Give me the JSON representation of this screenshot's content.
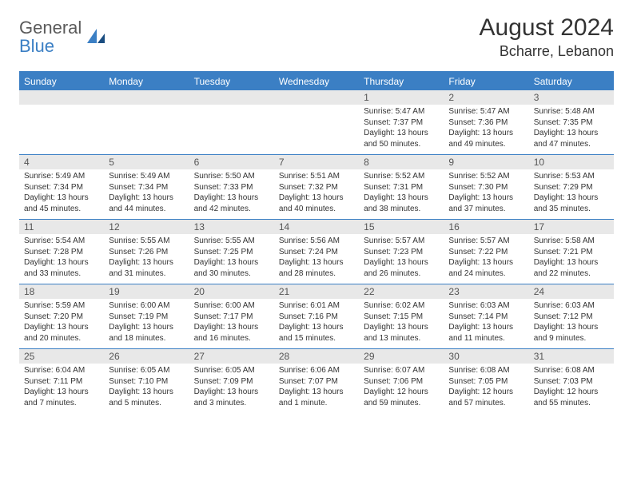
{
  "logo": {
    "text1": "General",
    "text2": "Blue"
  },
  "title": "August 2024",
  "location": "Bcharre, Lebanon",
  "colors": {
    "accent": "#3b7fc4",
    "header_text": "#ffffff",
    "daynum_bg": "#e8e8e8",
    "body_text": "#333333"
  },
  "day_headers": [
    "Sunday",
    "Monday",
    "Tuesday",
    "Wednesday",
    "Thursday",
    "Friday",
    "Saturday"
  ],
  "weeks": [
    {
      "nums": [
        "",
        "",
        "",
        "",
        "1",
        "2",
        "3"
      ],
      "cells": [
        [],
        [],
        [],
        [],
        [
          "Sunrise: 5:47 AM",
          "Sunset: 7:37 PM",
          "Daylight: 13 hours",
          "and 50 minutes."
        ],
        [
          "Sunrise: 5:47 AM",
          "Sunset: 7:36 PM",
          "Daylight: 13 hours",
          "and 49 minutes."
        ],
        [
          "Sunrise: 5:48 AM",
          "Sunset: 7:35 PM",
          "Daylight: 13 hours",
          "and 47 minutes."
        ]
      ]
    },
    {
      "nums": [
        "4",
        "5",
        "6",
        "7",
        "8",
        "9",
        "10"
      ],
      "cells": [
        [
          "Sunrise: 5:49 AM",
          "Sunset: 7:34 PM",
          "Daylight: 13 hours",
          "and 45 minutes."
        ],
        [
          "Sunrise: 5:49 AM",
          "Sunset: 7:34 PM",
          "Daylight: 13 hours",
          "and 44 minutes."
        ],
        [
          "Sunrise: 5:50 AM",
          "Sunset: 7:33 PM",
          "Daylight: 13 hours",
          "and 42 minutes."
        ],
        [
          "Sunrise: 5:51 AM",
          "Sunset: 7:32 PM",
          "Daylight: 13 hours",
          "and 40 minutes."
        ],
        [
          "Sunrise: 5:52 AM",
          "Sunset: 7:31 PM",
          "Daylight: 13 hours",
          "and 38 minutes."
        ],
        [
          "Sunrise: 5:52 AM",
          "Sunset: 7:30 PM",
          "Daylight: 13 hours",
          "and 37 minutes."
        ],
        [
          "Sunrise: 5:53 AM",
          "Sunset: 7:29 PM",
          "Daylight: 13 hours",
          "and 35 minutes."
        ]
      ]
    },
    {
      "nums": [
        "11",
        "12",
        "13",
        "14",
        "15",
        "16",
        "17"
      ],
      "cells": [
        [
          "Sunrise: 5:54 AM",
          "Sunset: 7:28 PM",
          "Daylight: 13 hours",
          "and 33 minutes."
        ],
        [
          "Sunrise: 5:55 AM",
          "Sunset: 7:26 PM",
          "Daylight: 13 hours",
          "and 31 minutes."
        ],
        [
          "Sunrise: 5:55 AM",
          "Sunset: 7:25 PM",
          "Daylight: 13 hours",
          "and 30 minutes."
        ],
        [
          "Sunrise: 5:56 AM",
          "Sunset: 7:24 PM",
          "Daylight: 13 hours",
          "and 28 minutes."
        ],
        [
          "Sunrise: 5:57 AM",
          "Sunset: 7:23 PM",
          "Daylight: 13 hours",
          "and 26 minutes."
        ],
        [
          "Sunrise: 5:57 AM",
          "Sunset: 7:22 PM",
          "Daylight: 13 hours",
          "and 24 minutes."
        ],
        [
          "Sunrise: 5:58 AM",
          "Sunset: 7:21 PM",
          "Daylight: 13 hours",
          "and 22 minutes."
        ]
      ]
    },
    {
      "nums": [
        "18",
        "19",
        "20",
        "21",
        "22",
        "23",
        "24"
      ],
      "cells": [
        [
          "Sunrise: 5:59 AM",
          "Sunset: 7:20 PM",
          "Daylight: 13 hours",
          "and 20 minutes."
        ],
        [
          "Sunrise: 6:00 AM",
          "Sunset: 7:19 PM",
          "Daylight: 13 hours",
          "and 18 minutes."
        ],
        [
          "Sunrise: 6:00 AM",
          "Sunset: 7:17 PM",
          "Daylight: 13 hours",
          "and 16 minutes."
        ],
        [
          "Sunrise: 6:01 AM",
          "Sunset: 7:16 PM",
          "Daylight: 13 hours",
          "and 15 minutes."
        ],
        [
          "Sunrise: 6:02 AM",
          "Sunset: 7:15 PM",
          "Daylight: 13 hours",
          "and 13 minutes."
        ],
        [
          "Sunrise: 6:03 AM",
          "Sunset: 7:14 PM",
          "Daylight: 13 hours",
          "and 11 minutes."
        ],
        [
          "Sunrise: 6:03 AM",
          "Sunset: 7:12 PM",
          "Daylight: 13 hours",
          "and 9 minutes."
        ]
      ]
    },
    {
      "nums": [
        "25",
        "26",
        "27",
        "28",
        "29",
        "30",
        "31"
      ],
      "cells": [
        [
          "Sunrise: 6:04 AM",
          "Sunset: 7:11 PM",
          "Daylight: 13 hours",
          "and 7 minutes."
        ],
        [
          "Sunrise: 6:05 AM",
          "Sunset: 7:10 PM",
          "Daylight: 13 hours",
          "and 5 minutes."
        ],
        [
          "Sunrise: 6:05 AM",
          "Sunset: 7:09 PM",
          "Daylight: 13 hours",
          "and 3 minutes."
        ],
        [
          "Sunrise: 6:06 AM",
          "Sunset: 7:07 PM",
          "Daylight: 13 hours",
          "and 1 minute."
        ],
        [
          "Sunrise: 6:07 AM",
          "Sunset: 7:06 PM",
          "Daylight: 12 hours",
          "and 59 minutes."
        ],
        [
          "Sunrise: 6:08 AM",
          "Sunset: 7:05 PM",
          "Daylight: 12 hours",
          "and 57 minutes."
        ],
        [
          "Sunrise: 6:08 AM",
          "Sunset: 7:03 PM",
          "Daylight: 12 hours",
          "and 55 minutes."
        ]
      ]
    }
  ]
}
